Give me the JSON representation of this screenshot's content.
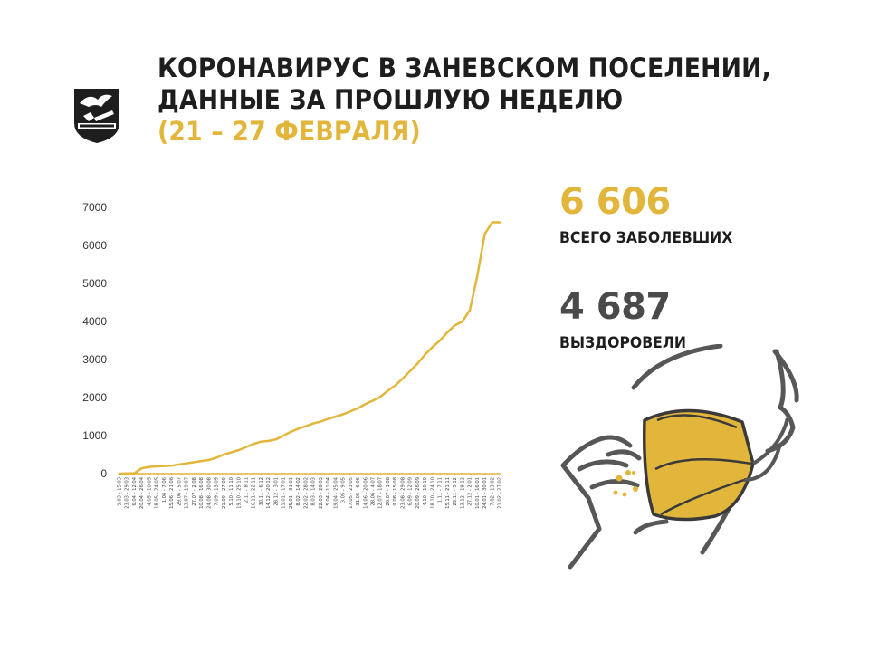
{
  "header": {
    "line1": "КОРОНАВИРУС В ЗАНЕВСКОМ ПОСЕЛЕНИИ,",
    "line2": "ДАННЫЕ ЗА ПРОШЛУЮ НЕДЕЛЮ",
    "line3": "(21 – 27 ФЕВРАЛЯ)"
  },
  "crest": {
    "icon": "coat-of-arms-icon"
  },
  "stats": {
    "total_value": "6 606",
    "total_label": "ВСЕГО ЗАБОЛЕВШИХ",
    "recovered_value": "4 687",
    "recovered_label": "ВЫЗДОРОВЕЛИ"
  },
  "colors": {
    "accent": "#e2b63a",
    "dark": "#1e1e1e",
    "gray": "#4a4a4a"
  },
  "illustration": {
    "icon": "face-mask-icon"
  },
  "chart_data": {
    "type": "line",
    "title": "",
    "xlabel": "",
    "ylabel": "",
    "ylim": [
      0,
      7000
    ],
    "y_ticks": [
      "0",
      "1000",
      "2000",
      "3000",
      "4000",
      "5000",
      "6000",
      "7000"
    ],
    "grid": false,
    "categories": [
      "9.03 - 15.03",
      "23.03 - 29.03",
      "6.04 - 12.04",
      "20.04 - 26.04",
      "4.05 - 10.05",
      "18.05 - 24.05",
      "1.06 - 7.06",
      "15.06 - 21.06",
      "29.06 - 5.07",
      "13.07 - 19.07",
      "27.07 - 2.08",
      "10.08 - 16.08",
      "24.08 - 30.08",
      "7.09 - 13.09",
      "21.09 - 27.09",
      "5.10 - 11.10",
      "19.10 - 25.10",
      "2.11 - 8.11",
      "16.11 - 22.11",
      "30.11 - 6.12",
      "14.12 - 20.12",
      "28.12 - 3.01",
      "11.01 - 17.01",
      "25.01 - 31.01",
      "8.02 - 14.02",
      "22.02 - 28.02",
      "8.03 - 14.03",
      "22.03 - 28.03",
      "5.04 - 11.04",
      "19.04 - 25.04",
      "3.05 - 9.05",
      "17.05 - 23.05",
      "31.05 - 6.06",
      "14.06 - 20.06",
      "28.06 - 4.07",
      "12.07 - 18.07",
      "26.07 - 1.08",
      "9.08 - 15.08",
      "23.08 - 29.08",
      "6.09 - 12.09",
      "20.09 - 26.09",
      "4.10 - 10.10",
      "18.10 - 24.10",
      "1.11 - 7.11",
      "15.11 - 21.11",
      "29.11 - 5.12",
      "13.12 - 19.12",
      "27.12 - 2.01",
      "10.01 - 16.01",
      "24.01 - 30.01",
      "7.02 - 13.02",
      "21.02 - 27.02"
    ],
    "series": [
      {
        "values": [
          0,
          0,
          0,
          0,
          0,
          0,
          0,
          0,
          0,
          0,
          0,
          0,
          0,
          0,
          0,
          0,
          0,
          0,
          0,
          0,
          0,
          0,
          0,
          0,
          0,
          0,
          0,
          0,
          0,
          0,
          0,
          0,
          0,
          0,
          0,
          0,
          0,
          0,
          0,
          0,
          0,
          0,
          0,
          0,
          0,
          0,
          0,
          0,
          0,
          0,
          0,
          0
        ]
      },
      {
        "values": [
          0,
          5,
          10,
          140,
          175,
          190,
          200,
          210,
          240,
          270,
          300,
          330,
          360,
          420,
          500,
          560,
          620,
          700,
          780,
          840,
          860,
          900,
          1000,
          1100,
          1180,
          1250,
          1320,
          1370,
          1440,
          1500,
          1560,
          1640,
          1720,
          1830,
          1920,
          2020,
          2180,
          2320,
          2500,
          2700,
          2900,
          3130,
          3330,
          3500,
          3720,
          3900,
          4000,
          4300,
          5200,
          6300,
          6606,
          6606
        ]
      }
    ]
  }
}
